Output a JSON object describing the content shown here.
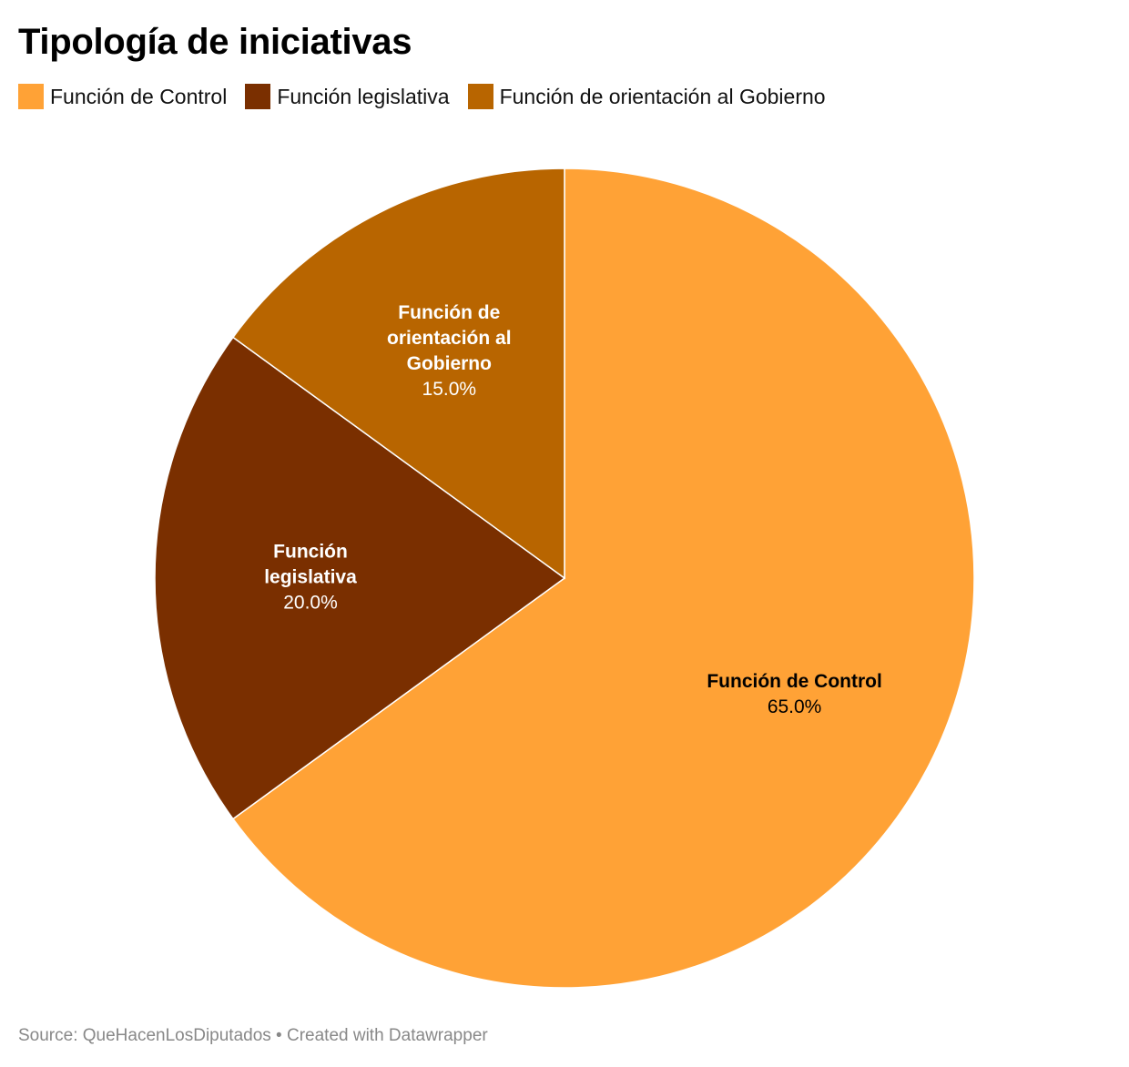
{
  "chart_data": {
    "type": "pie",
    "title": "Tipología de iniciativas",
    "slices": [
      {
        "name": "Función de Control",
        "value": 65.0,
        "value_label": "65.0%",
        "label_lines": [
          "Función de Control"
        ],
        "color": "#FFA236",
        "label_color": "#000000"
      },
      {
        "name": "Función legislativa",
        "value": 20.0,
        "value_label": "20.0%",
        "label_lines": [
          "Función",
          "legislativa"
        ],
        "color": "#7A2F00",
        "label_color": "#ffffff"
      },
      {
        "name": "Función de orientación al Gobierno",
        "value": 15.0,
        "value_label": "15.0%",
        "label_lines": [
          "Función de",
          "orientación al",
          "Gobierno"
        ],
        "color": "#B86500",
        "label_color": "#ffffff"
      }
    ],
    "legend_position": "top-left",
    "start": "12 o'clock",
    "direction": "clockwise"
  },
  "legend": [
    {
      "label": "Función de Control",
      "color": "#FFA236"
    },
    {
      "label": "Función legislativa",
      "color": "#7A2F00"
    },
    {
      "label": "Función de orientación al Gobierno",
      "color": "#B86500"
    }
  ],
  "footer": {
    "text": "Source: QueHacenLosDiputados • Created with Datawrapper"
  }
}
